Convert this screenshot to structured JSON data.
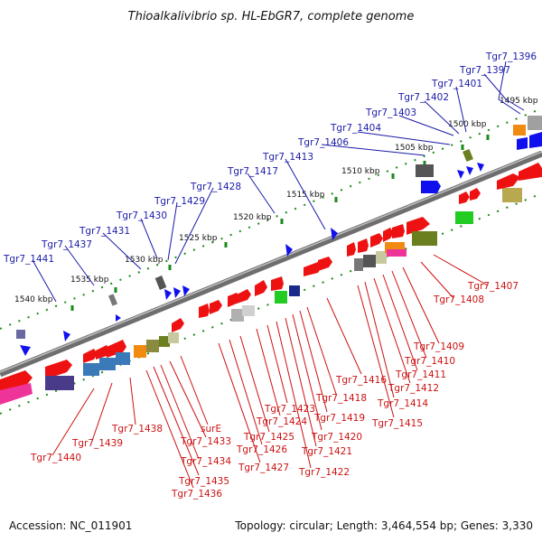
{
  "title": "Thioalkalivibrio sp. HL-EbGR7, complete genome",
  "footer": {
    "accession": "Accession: NC_011901",
    "topology": "Topology: circular; Length: 3,464,554 bp; Genes: 3,330"
  },
  "scale_labels": [
    "1495 kbp",
    "1500 kbp",
    "1505 kbp",
    "1510 kbp",
    "1515 kbp",
    "1520 kbp",
    "1525 kbp",
    "1530 kbp",
    "1535 kbp",
    "1540 kbp"
  ],
  "top_labels": [
    "Tgr7_1396",
    "Tgr7_1397",
    "Tgr7_1401",
    "Tgr7_1402",
    "Tgr7_1403",
    "Tgr7_1404",
    "Tgr7_1406",
    "Tgr7_1413",
    "Tgr7_1417",
    "Tgr7_1428",
    "Tgr7_1429",
    "Tgr7_1430",
    "Tgr7_1431",
    "Tgr7_1437",
    "Tgr7_1441"
  ],
  "bottom_labels": [
    "Tgr7_1407",
    "Tgr7_1408",
    "Tgr7_1409",
    "Tgr7_1410",
    "Tgr7_1411",
    "Tgr7_1412",
    "Tgr7_1414",
    "Tgr7_1415",
    "Tgr7_1416",
    "Tgr7_1418",
    "Tgr7_1419",
    "Tgr7_1420",
    "Tgr7_1421",
    "Tgr7_1422",
    "Tgr7_1423",
    "Tgr7_1424",
    "Tgr7_1425",
    "Tgr7_1426",
    "Tgr7_1427",
    "Tgr7_1438",
    "surE",
    "Tgr7_1433",
    "Tgr7_1434",
    "Tgr7_1435",
    "Tgr7_1436",
    "Tgr7_1439",
    "Tgr7_1440"
  ],
  "colors": {
    "top_label": "#1a1aa8",
    "bottom_label": "#cc1111",
    "backbone": "#7a7a7a",
    "tick": "#1a8a1a",
    "arrow_blue": "#1010ee",
    "arrow_red": "#ee1111"
  }
}
